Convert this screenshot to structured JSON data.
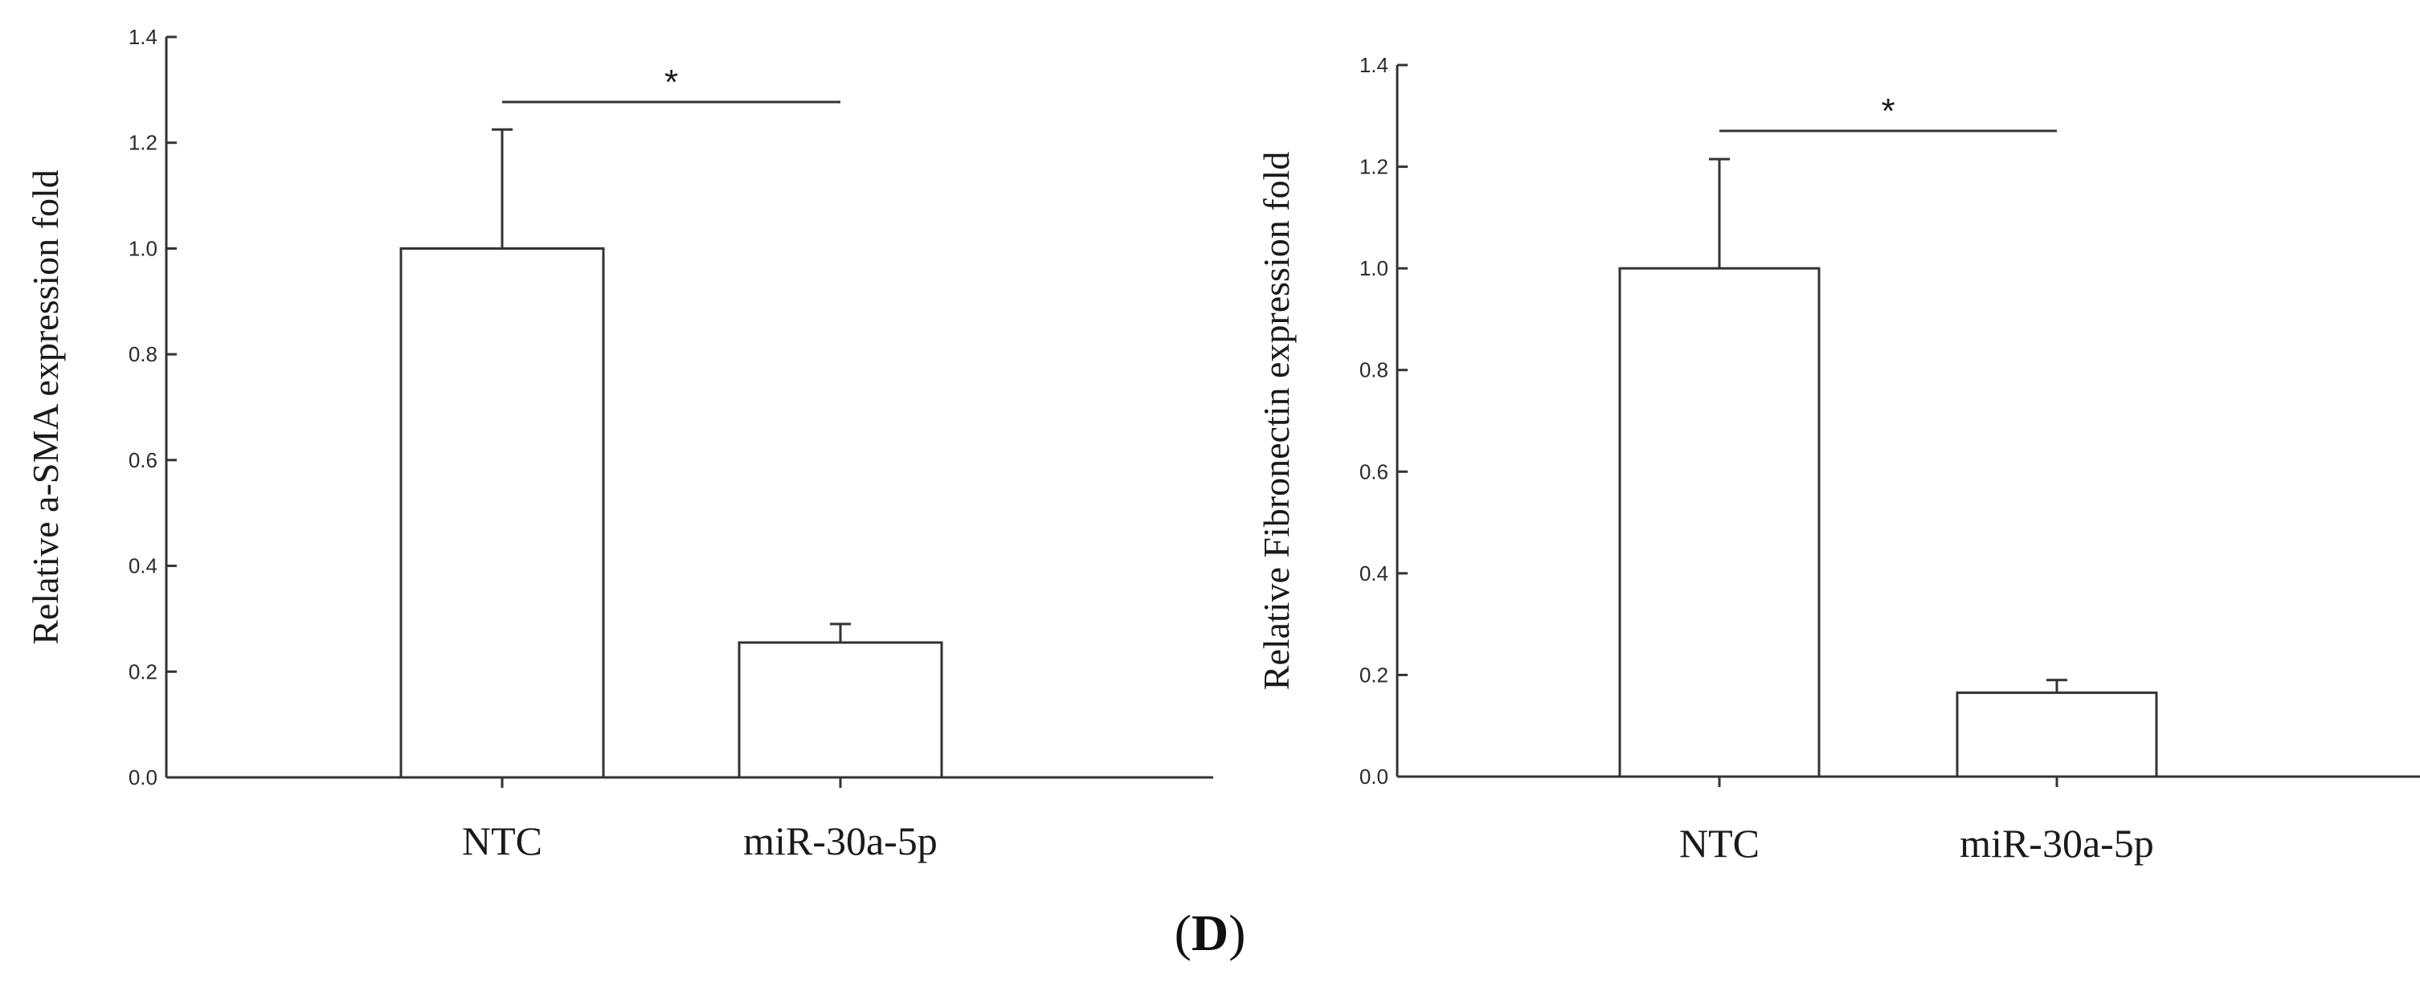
{
  "chart_data": [
    {
      "type": "bar",
      "title": "",
      "xlabel": "",
      "ylabel": "Relative a-SMA  expression fold",
      "categories": [
        "NTC",
        "miR-30a-5p"
      ],
      "values": [
        1.0,
        0.255
      ],
      "error": [
        0.225,
        0.035
      ],
      "ylim": [
        0,
        1.4
      ],
      "yticks": [
        "0.0",
        "0.2",
        "0.4",
        "0.6",
        "0.8",
        "1.0",
        "1.2",
        "1.4"
      ],
      "significance": {
        "between": [
          "NTC",
          "miR-30a-5p"
        ],
        "marker": "*"
      },
      "bar_color": "#ffffff",
      "line_color": "#333333",
      "grid": false,
      "legend": "none"
    },
    {
      "type": "bar",
      "title": "",
      "xlabel": "",
      "ylabel": "Relative Fibronectin  expression fold",
      "categories": [
        "NTC",
        "miR-30a-5p"
      ],
      "values": [
        1.0,
        0.165
      ],
      "error": [
        0.215,
        0.025
      ],
      "ylim": [
        0,
        1.4
      ],
      "yticks": [
        "0.0",
        "0.2",
        "0.4",
        "0.6",
        "0.8",
        "1.0",
        "1.2",
        "1.4"
      ],
      "significance": {
        "between": [
          "NTC",
          "miR-30a-5p"
        ],
        "marker": "*"
      },
      "bar_color": "#ffffff",
      "line_color": "#333333",
      "grid": false,
      "legend": "none"
    }
  ],
  "panel_label": {
    "open": "(",
    "letter": "D",
    "close": ")"
  }
}
